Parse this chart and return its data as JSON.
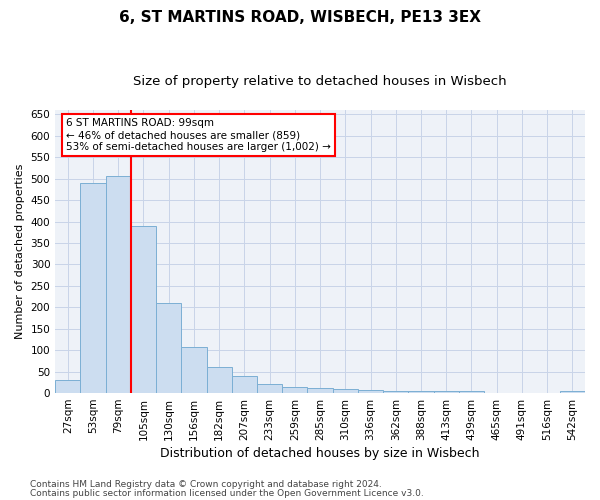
{
  "title1": "6, ST MARTINS ROAD, WISBECH, PE13 3EX",
  "title2": "Size of property relative to detached houses in Wisbech",
  "xlabel": "Distribution of detached houses by size in Wisbech",
  "ylabel": "Number of detached properties",
  "categories": [
    "27sqm",
    "53sqm",
    "79sqm",
    "105sqm",
    "130sqm",
    "156sqm",
    "182sqm",
    "207sqm",
    "233sqm",
    "259sqm",
    "285sqm",
    "310sqm",
    "336sqm",
    "362sqm",
    "388sqm",
    "413sqm",
    "439sqm",
    "465sqm",
    "491sqm",
    "516sqm",
    "542sqm"
  ],
  "values": [
    30,
    490,
    505,
    390,
    210,
    107,
    60,
    40,
    20,
    14,
    12,
    10,
    7,
    5,
    4,
    4,
    4,
    1,
    1,
    1,
    4
  ],
  "bar_color": "#ccddf0",
  "bar_edge_color": "#7bafd4",
  "vline_x": 2.5,
  "vline_color": "red",
  "annotation_text": "6 ST MARTINS ROAD: 99sqm\n← 46% of detached houses are smaller (859)\n53% of semi-detached houses are larger (1,002) →",
  "annotation_box_color": "white",
  "annotation_box_edge_color": "red",
  "ylim": [
    0,
    660
  ],
  "yticks": [
    0,
    50,
    100,
    150,
    200,
    250,
    300,
    350,
    400,
    450,
    500,
    550,
    600,
    650
  ],
  "footer1": "Contains HM Land Registry data © Crown copyright and database right 2024.",
  "footer2": "Contains public sector information licensed under the Open Government Licence v3.0.",
  "bg_color": "#eef2f8",
  "grid_color": "#c8d4e8",
  "title1_fontsize": 11,
  "title2_fontsize": 9.5,
  "xlabel_fontsize": 9,
  "ylabel_fontsize": 8,
  "tick_fontsize": 7.5,
  "footer_fontsize": 6.5,
  "annotation_fontsize": 7.5
}
